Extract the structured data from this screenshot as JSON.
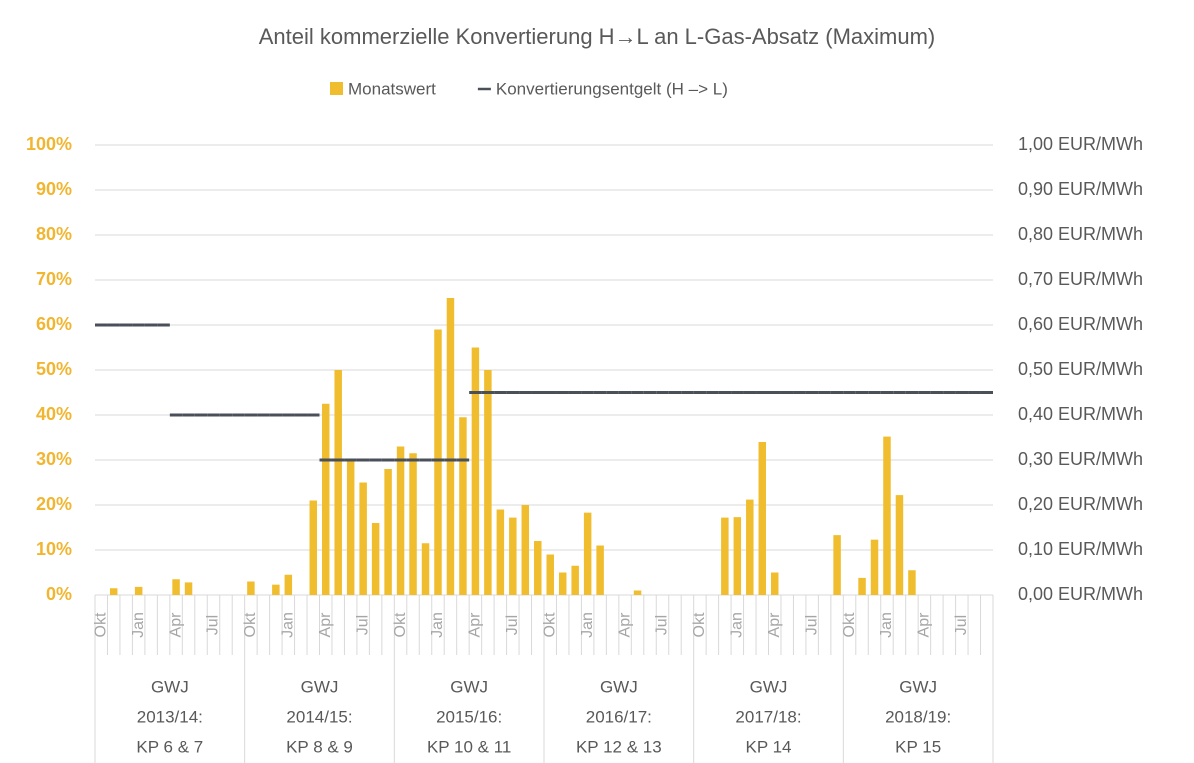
{
  "chart_data": {
    "type": "bar",
    "title": "Anteil kommerzielle Konvertierung H→L an L-Gas-Absatz (Maximum)",
    "categories": [
      "Okt",
      null,
      null,
      "Jan",
      null,
      null,
      "Apr",
      null,
      null,
      "Jul",
      null,
      null,
      "Okt",
      null,
      null,
      "Jan",
      null,
      null,
      "Apr",
      null,
      null,
      "Jul",
      null,
      null,
      "Okt",
      null,
      null,
      "Jan",
      null,
      null,
      "Apr",
      null,
      null,
      "Jul",
      null,
      null,
      "Okt",
      null,
      null,
      "Jan",
      null,
      null,
      "Apr",
      null,
      null,
      "Jul",
      null,
      null,
      "Okt",
      null,
      null,
      "Jan",
      null,
      null,
      "Apr",
      null,
      null,
      "Jul",
      null,
      null,
      "Okt",
      null,
      null,
      "Jan",
      null,
      null,
      "Apr",
      null,
      null,
      "Jul",
      null,
      null
    ],
    "groups": [
      [
        "GWJ",
        "2013/14:",
        "KP 6 & 7"
      ],
      [
        "GWJ",
        "2014/15:",
        "KP 8 & 9"
      ],
      [
        "GWJ",
        "2015/16:",
        "KP 10 & 11"
      ],
      [
        "GWJ",
        "2016/17:",
        "KP 12 & 13"
      ],
      [
        "GWJ",
        "2017/18:",
        "KP 14"
      ],
      [
        "GWJ",
        "2018/19:",
        "KP 15"
      ]
    ],
    "series": [
      {
        "name": "Monatswert",
        "color": "#f0bd2e",
        "type": "bar",
        "values": [
          0,
          1.5,
          0,
          1.8,
          0,
          0,
          3.5,
          2.8,
          0,
          0,
          0,
          0,
          3,
          0,
          2.3,
          4.5,
          0,
          21,
          42.5,
          50,
          30,
          25,
          16,
          28,
          33,
          31.5,
          11.5,
          59,
          66,
          39.5,
          55,
          50,
          19,
          17.2,
          20,
          12,
          9,
          5,
          6.5,
          18.3,
          11,
          0,
          0,
          1,
          0,
          0,
          0,
          0,
          0,
          0,
          17.2,
          17.3,
          21.2,
          34,
          5,
          0,
          0,
          0,
          0,
          13.3,
          0,
          3.8,
          12.3,
          35.2,
          22.2,
          5.5,
          0,
          0,
          0,
          0,
          0,
          0
        ]
      },
      {
        "name": "Konvertierungsentgelt (H –> L)",
        "color": "#4a5059",
        "type": "line",
        "axis": "y2",
        "values": [
          0.6,
          0.6,
          0.6,
          0.6,
          0.6,
          0.6,
          0.4,
          0.4,
          0.4,
          0.4,
          0.4,
          0.4,
          0.4,
          0.4,
          0.4,
          0.4,
          0.4,
          0.4,
          0.3,
          0.3,
          0.3,
          0.3,
          0.3,
          0.3,
          0.3,
          0.3,
          0.3,
          0.3,
          0.3,
          0.3,
          0.45,
          0.45,
          0.45,
          0.45,
          0.45,
          0.45,
          0.45,
          0.45,
          0.45,
          0.45,
          0.45,
          0.45,
          0.45,
          0.45,
          0.45,
          0.45,
          0.45,
          0.45,
          0.45,
          0.45,
          0.45,
          0.45,
          0.45,
          0.45,
          0.45,
          0.45,
          0.45,
          0.45,
          0.45,
          0.45,
          0.45,
          0.45,
          0.45,
          0.45,
          0.45,
          0.45,
          0.45,
          0.45,
          0.45,
          0.45,
          0.45,
          0.45
        ]
      }
    ],
    "ylim": [
      0,
      100
    ],
    "yticks": [
      {
        "value": 0,
        "label": "0%"
      },
      {
        "value": 10,
        "label": "10%"
      },
      {
        "value": 20,
        "label": "20%"
      },
      {
        "value": 30,
        "label": "30%"
      },
      {
        "value": 40,
        "label": "40%"
      },
      {
        "value": 50,
        "label": "50%"
      },
      {
        "value": 60,
        "label": "60%"
      },
      {
        "value": 70,
        "label": "70%"
      },
      {
        "value": 80,
        "label": "80%"
      },
      {
        "value": 90,
        "label": "90%"
      },
      {
        "value": 100,
        "label": "100%"
      }
    ],
    "y2lim": [
      0,
      1
    ],
    "y2ticks": [
      {
        "value": 0,
        "label": "0,00 EUR/MWh"
      },
      {
        "value": 0.1,
        "label": "0,10 EUR/MWh"
      },
      {
        "value": 0.2,
        "label": "0,20 EUR/MWh"
      },
      {
        "value": 0.3,
        "label": "0,30 EUR/MWh"
      },
      {
        "value": 0.4,
        "label": "0,40 EUR/MWh"
      },
      {
        "value": 0.5,
        "label": "0,50 EUR/MWh"
      },
      {
        "value": 0.6,
        "label": "0,60 EUR/MWh"
      },
      {
        "value": 0.7,
        "label": "0,70 EUR/MWh"
      },
      {
        "value": 0.8,
        "label": "0,80 EUR/MWh"
      },
      {
        "value": 0.9,
        "label": "0,90 EUR/MWh"
      },
      {
        "value": 1,
        "label": "1,00 EUR/MWh"
      }
    ],
    "grid": true,
    "legend": "top"
  }
}
